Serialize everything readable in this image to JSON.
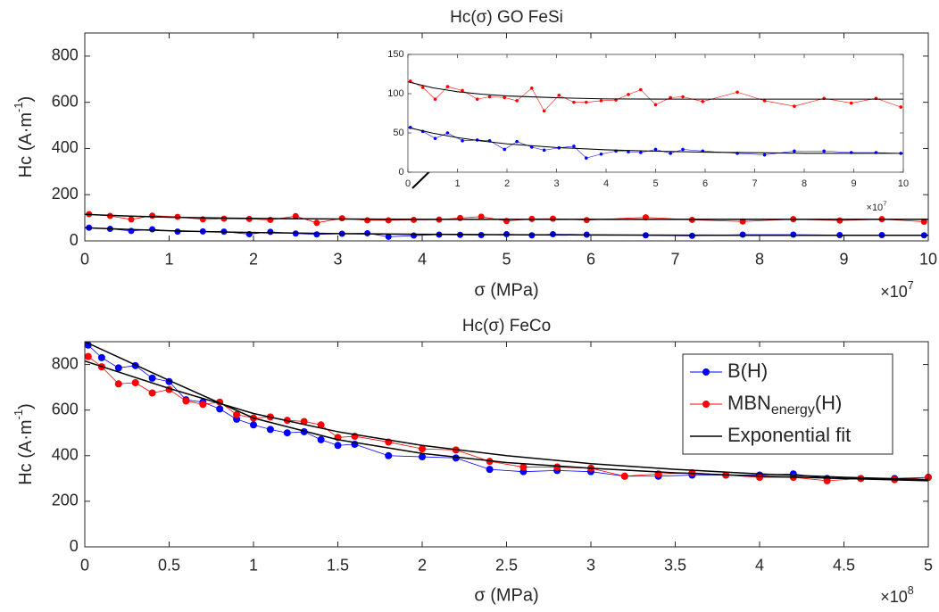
{
  "chart_data": [
    {
      "type": "line",
      "title": "Hc(σ) GO FeSi",
      "xlabel": "σ (MPa)",
      "ylabel": "Hc (A·m",
      "ylabel_sup": "-1",
      "ylabel_end": ")",
      "x_multiplier": "×10",
      "x_exponent": "7",
      "xlim": [
        0,
        10
      ],
      "xticks": [
        0,
        1,
        2,
        3,
        4,
        5,
        6,
        7,
        8,
        9,
        10
      ],
      "ylim": [
        0,
        900
      ],
      "yticks": [
        0,
        200,
        400,
        600,
        800
      ],
      "series": [
        {
          "color": "#ff0000",
          "marker": true,
          "x": [
            0.05,
            0.3,
            0.55,
            0.8,
            1.1,
            1.4,
            1.65,
            1.95,
            2.2,
            2.5,
            2.75,
            3.05,
            3.35,
            3.6,
            3.9,
            4.2,
            4.45,
            4.7,
            5.0,
            5.3,
            5.55,
            5.95,
            6.65,
            7.2,
            7.8,
            8.4,
            8.95,
            9.45,
            9.95
          ],
          "values": [
            116,
            108,
            93,
            109,
            104,
            93,
            96,
            95,
            91,
            107,
            78,
            98,
            89,
            89,
            91,
            92,
            99,
            105,
            86,
            95,
            96,
            90,
            102,
            91,
            84,
            94,
            88,
            94,
            83
          ]
        },
        {
          "color": "#0000ff",
          "marker": true,
          "x": [
            0.05,
            0.3,
            0.55,
            0.8,
            1.1,
            1.4,
            1.65,
            1.95,
            2.2,
            2.5,
            2.75,
            3.05,
            3.35,
            3.6,
            3.9,
            4.2,
            4.45,
            4.7,
            5.0,
            5.3,
            5.55,
            5.95,
            6.65,
            7.2,
            7.8,
            8.4,
            8.95,
            9.45,
            9.95
          ],
          "values": [
            57,
            52,
            43,
            50,
            40,
            41,
            40,
            29,
            39,
            32,
            28,
            31,
            33,
            18,
            23,
            27,
            26,
            25,
            29,
            24,
            29,
            27,
            24,
            22,
            27,
            27,
            25,
            25,
            24
          ]
        },
        {
          "color": "#000000",
          "marker": false,
          "x": [
            0,
            0.5,
            1,
            1.5,
            2,
            3,
            4,
            5,
            6,
            8,
            10
          ],
          "values": [
            115,
            107.5,
            102.5,
            99.3,
            97.1,
            94.8,
            93.3,
            93.1,
            93,
            93,
            93
          ]
        },
        {
          "color": "#000000",
          "marker": false,
          "x": [
            0,
            0.5,
            1,
            1.5,
            2,
            3,
            4,
            5,
            6,
            8,
            10
          ],
          "values": [
            57,
            49.7,
            44,
            39.6,
            36.1,
            31.4,
            28.5,
            26.7,
            25.5,
            24.1,
            24
          ]
        }
      ]
    },
    {
      "type": "line",
      "x_multiplier": "×10",
      "x_exponent": "7",
      "xlim": [
        0,
        10
      ],
      "xticks": [
        0,
        1,
        2,
        3,
        4,
        5,
        6,
        7,
        8,
        9,
        10
      ],
      "ylim": [
        0,
        150
      ],
      "yticks": [
        0,
        50,
        100,
        150
      ],
      "series": [
        {
          "color": "#ff0000",
          "marker": true,
          "x": [
            0.05,
            0.3,
            0.55,
            0.8,
            1.1,
            1.4,
            1.65,
            1.95,
            2.2,
            2.5,
            2.75,
            3.05,
            3.35,
            3.6,
            3.9,
            4.2,
            4.45,
            4.7,
            5.0,
            5.3,
            5.55,
            5.95,
            6.65,
            7.2,
            7.8,
            8.4,
            8.95,
            9.45,
            9.95
          ],
          "values": [
            116,
            108,
            93,
            109,
            104,
            93,
            96,
            95,
            91,
            107,
            78,
            98,
            89,
            89,
            91,
            92,
            99,
            105,
            86,
            95,
            96,
            90,
            102,
            91,
            84,
            94,
            88,
            94,
            83
          ]
        },
        {
          "color": "#0000ff",
          "marker": true,
          "x": [
            0.05,
            0.3,
            0.55,
            0.8,
            1.1,
            1.4,
            1.65,
            1.95,
            2.2,
            2.5,
            2.75,
            3.05,
            3.35,
            3.6,
            3.9,
            4.2,
            4.45,
            4.7,
            5.0,
            5.3,
            5.55,
            5.95,
            6.65,
            7.2,
            7.8,
            8.4,
            8.95,
            9.45,
            9.95
          ],
          "values": [
            57,
            52,
            43,
            50,
            40,
            41,
            40,
            29,
            39,
            32,
            28,
            31,
            33,
            18,
            23,
            27,
            26,
            25,
            29,
            24,
            29,
            27,
            24,
            22,
            27,
            27,
            25,
            25,
            24
          ]
        },
        {
          "color": "#000000",
          "marker": false,
          "x": [
            0,
            0.5,
            1,
            1.5,
            2,
            3,
            4,
            5,
            6,
            8,
            10
          ],
          "values": [
            115,
            107.5,
            102.5,
            99.3,
            97.1,
            94.8,
            93.3,
            93.1,
            93,
            93,
            93
          ]
        },
        {
          "color": "#000000",
          "marker": false,
          "x": [
            0,
            0.5,
            1,
            1.5,
            2,
            3,
            4,
            5,
            6,
            8,
            10
          ],
          "values": [
            57,
            49.7,
            44,
            39.6,
            36.1,
            31.4,
            28.5,
            26.7,
            25.5,
            24.1,
            24
          ]
        }
      ]
    },
    {
      "type": "line",
      "title": "Hc(σ) FeCo",
      "xlabel": "σ (MPa)",
      "ylabel": "Hc (A·m",
      "ylabel_sup": "-1",
      "ylabel_end": ")",
      "x_multiplier": "×10",
      "x_exponent": "8",
      "legend": "upper right",
      "xlim": [
        0,
        5
      ],
      "xticks": [
        0,
        0.5,
        1,
        1.5,
        2,
        2.5,
        3,
        3.5,
        4,
        4.5,
        5
      ],
      "ylim": [
        0,
        900
      ],
      "yticks": [
        0,
        200,
        400,
        600,
        800
      ],
      "series": [
        {
          "name": "B(H)",
          "color": "#0000ff",
          "marker": true,
          "x": [
            0.02,
            0.1,
            0.2,
            0.3,
            0.4,
            0.5,
            0.6,
            0.7,
            0.8,
            0.9,
            1.0,
            1.1,
            1.2,
            1.3,
            1.4,
            1.5,
            1.6,
            1.8,
            2.0,
            2.2,
            2.4,
            2.6,
            2.8,
            3.0,
            3.2,
            3.4,
            3.6,
            3.8,
            4.0,
            4.2,
            4.4,
            4.6,
            4.8,
            5.0
          ],
          "values": [
            885,
            830,
            785,
            795,
            740,
            725,
            645,
            635,
            605,
            560,
            535,
            515,
            500,
            505,
            470,
            445,
            450,
            400,
            395,
            390,
            340,
            330,
            335,
            330,
            310,
            310,
            315,
            315,
            315,
            320,
            300,
            300,
            300,
            305
          ]
        },
        {
          "name": "MBN",
          "name_sub": "energy",
          "name_end": "(H)",
          "color": "#ff0000",
          "marker": true,
          "x": [
            0.02,
            0.1,
            0.2,
            0.3,
            0.4,
            0.5,
            0.6,
            0.7,
            0.8,
            0.9,
            1.0,
            1.1,
            1.2,
            1.3,
            1.4,
            1.5,
            1.6,
            1.8,
            2.0,
            2.2,
            2.4,
            2.6,
            2.8,
            3.0,
            3.2,
            3.4,
            3.6,
            3.8,
            4.0,
            4.2,
            4.4,
            4.6,
            4.8,
            5.0
          ],
          "values": [
            835,
            790,
            715,
            720,
            675,
            690,
            640,
            625,
            635,
            580,
            565,
            570,
            555,
            550,
            535,
            480,
            485,
            460,
            430,
            425,
            375,
            350,
            350,
            345,
            310,
            320,
            325,
            315,
            305,
            305,
            290,
            300,
            295,
            305
          ]
        },
        {
          "name": "Exponential fit",
          "color": "#000000",
          "marker": false,
          "x": [
            0,
            0.5,
            1,
            1.5,
            2,
            2.5,
            3,
            3.5,
            4,
            4.5,
            5
          ],
          "values": [
            900,
            730,
            565,
            470,
            410,
            370,
            345,
            325,
            310,
            300,
            290
          ]
        },
        {
          "color": "#000000",
          "marker": false,
          "x": [
            0,
            0.5,
            1,
            1.5,
            2,
            2.5,
            3,
            3.5,
            4,
            4.5,
            5
          ],
          "values": [
            815,
            695,
            585,
            505,
            445,
            400,
            365,
            340,
            320,
            305,
            295
          ]
        }
      ]
    }
  ]
}
